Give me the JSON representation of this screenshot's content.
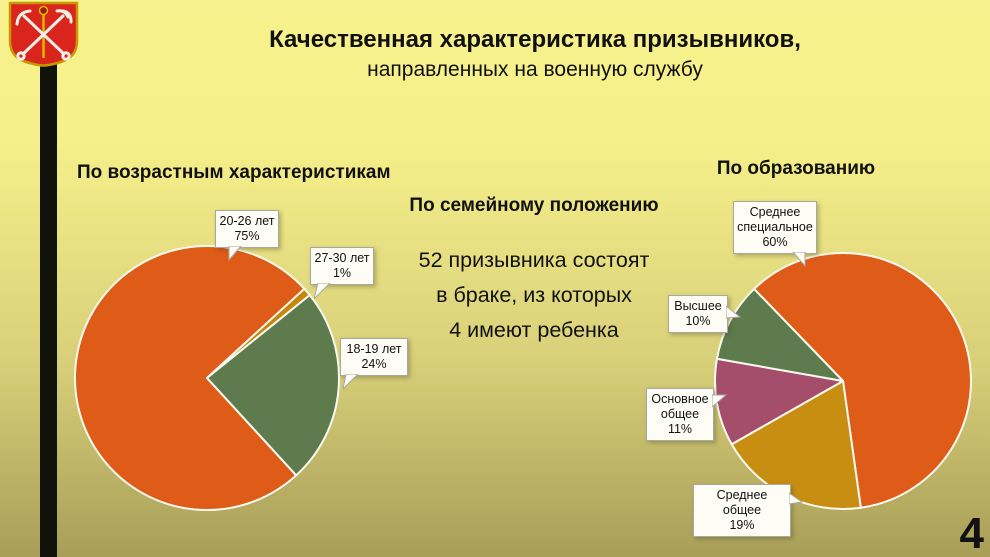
{
  "slide": {
    "title_line1": "Качественная характеристика призывников,",
    "title_line2": "направленных на военную службу",
    "page_number": "4",
    "emblem": "saint-petersburg-coat-of-arms-flag",
    "background_top_color": "#F6F08A",
    "background_bottom_color": "#A89E58"
  },
  "family": {
    "title": "По семейному положению",
    "line1": "52 призывника состоят",
    "line2": "в браке, из которых",
    "line3": "4 имеют ребенка"
  },
  "chart_data": [
    {
      "type": "pie",
      "title": "По возрастным характеристикам",
      "categories": [
        "20-26 лет",
        "27-30 лет",
        "18-19 лет"
      ],
      "values": [
        75,
        1,
        24
      ],
      "colors": [
        "#DF5B18",
        "#C6860C",
        "#5E7B4E"
      ],
      "start_angle_deg": 137.5,
      "legend_position": "callout-labels",
      "callouts": [
        {
          "line1": "20-26 лет",
          "line2": "75%"
        },
        {
          "line1": "27-30 лет",
          "line2": "1%"
        },
        {
          "line1": "18-19 лет",
          "line2": "24%"
        }
      ]
    },
    {
      "type": "pie",
      "title": "По образованию",
      "categories": [
        "Среднее специальное",
        "Среднее общее",
        "Основное общее",
        "Высшее"
      ],
      "values": [
        60,
        19,
        11,
        10
      ],
      "colors": [
        "#DF5B18",
        "#C78E12",
        "#A44E6C",
        "#5E7B4E"
      ],
      "start_angle_deg": 316,
      "legend_position": "callout-labels",
      "callouts": [
        {
          "line1": "Среднее",
          "line2": "специальное",
          "line3": "60%"
        },
        {
          "line1": "Среднее общее",
          "line2": "19%"
        },
        {
          "line1": "Основное",
          "line2": "общее",
          "line3": "11%"
        },
        {
          "line1": "Высшее",
          "line2": "10%"
        }
      ]
    }
  ]
}
